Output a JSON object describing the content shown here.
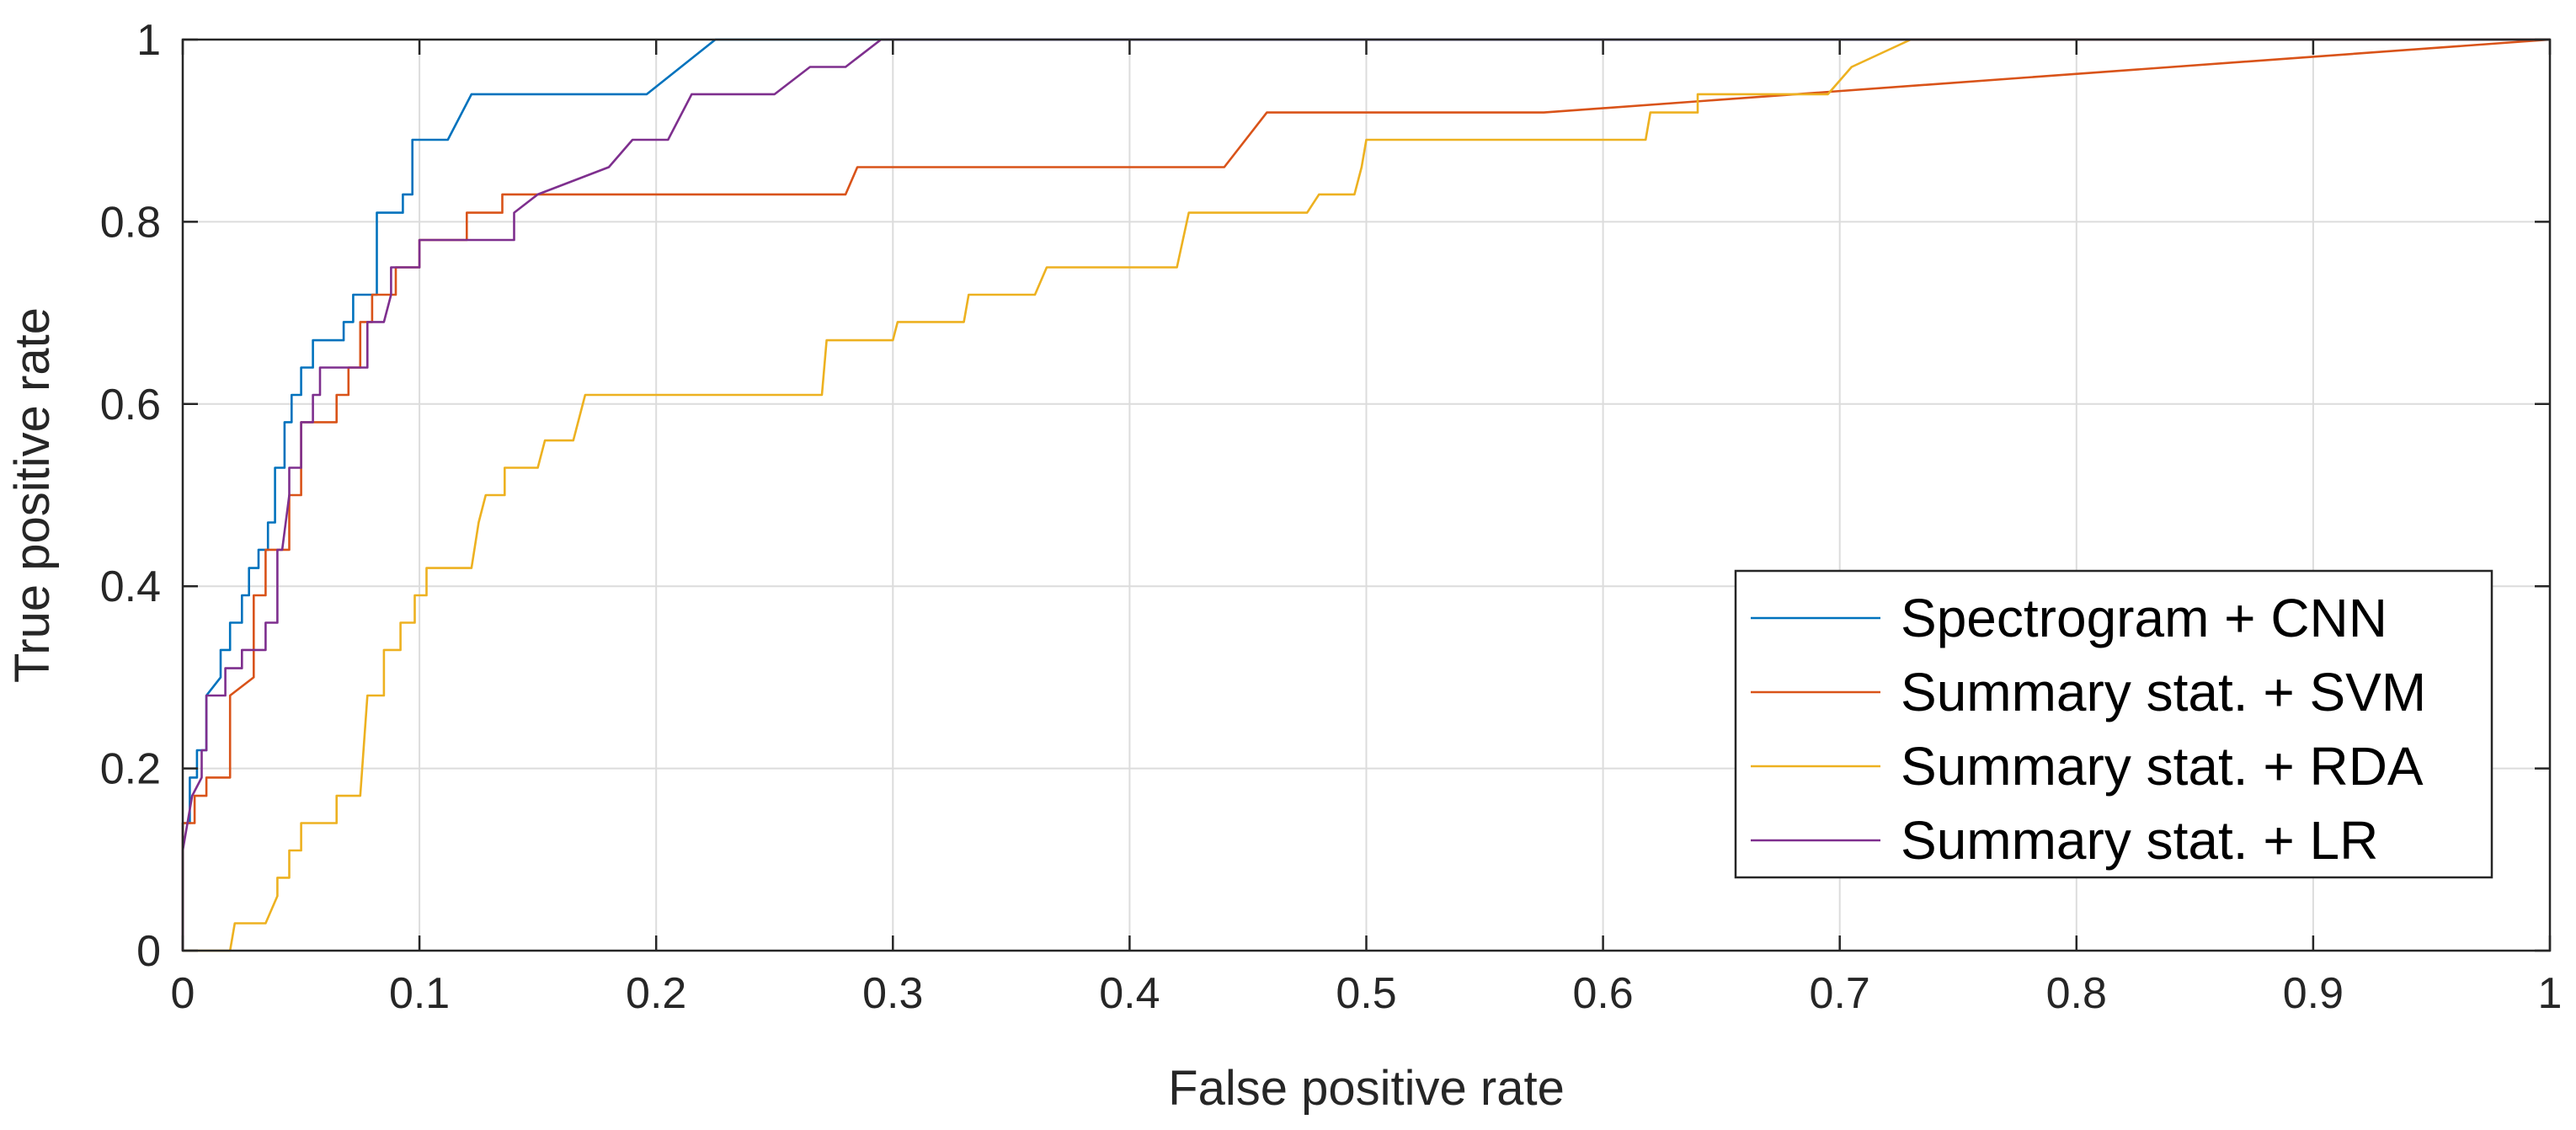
{
  "chart_data": {
    "type": "line",
    "title": "",
    "xlabel": "False positive rate",
    "ylabel": "True positive rate",
    "xlim": [
      0,
      1
    ],
    "ylim": [
      0,
      1
    ],
    "grid": true,
    "legend_position": "bottom-right",
    "xticks": [
      0,
      0.1,
      0.2,
      0.3,
      0.4,
      0.5,
      0.6,
      0.7,
      0.8,
      0.9,
      1
    ],
    "xtick_labels": [
      "0",
      "0.1",
      "0.2",
      "0.3",
      "0.4",
      "0.5",
      "0.6",
      "0.7",
      "0.8",
      "0.9",
      "1"
    ],
    "yticks": [
      0,
      0.2,
      0.4,
      0.6,
      0.8,
      1
    ],
    "ytick_labels": [
      "0",
      "0.2",
      "0.4",
      "0.6",
      "0.8",
      "1"
    ],
    "series": [
      {
        "name": "Spectrogram + CNN",
        "color": "#0072BD",
        "points": [
          [
            0,
            0
          ],
          [
            0,
            0.14
          ],
          [
            0.003,
            0.14
          ],
          [
            0.003,
            0.19
          ],
          [
            0.006,
            0.19
          ],
          [
            0.006,
            0.22
          ],
          [
            0.01,
            0.22
          ],
          [
            0.01,
            0.28
          ],
          [
            0.016,
            0.3
          ],
          [
            0.016,
            0.33
          ],
          [
            0.02,
            0.33
          ],
          [
            0.02,
            0.36
          ],
          [
            0.025,
            0.36
          ],
          [
            0.025,
            0.39
          ],
          [
            0.028,
            0.39
          ],
          [
            0.028,
            0.42
          ],
          [
            0.032,
            0.42
          ],
          [
            0.032,
            0.44
          ],
          [
            0.036,
            0.44
          ],
          [
            0.036,
            0.47
          ],
          [
            0.039,
            0.47
          ],
          [
            0.039,
            0.53
          ],
          [
            0.043,
            0.53
          ],
          [
            0.043,
            0.58
          ],
          [
            0.046,
            0.58
          ],
          [
            0.046,
            0.61
          ],
          [
            0.05,
            0.61
          ],
          [
            0.05,
            0.64
          ],
          [
            0.055,
            0.64
          ],
          [
            0.055,
            0.67
          ],
          [
            0.068,
            0.67
          ],
          [
            0.068,
            0.69
          ],
          [
            0.072,
            0.69
          ],
          [
            0.072,
            0.72
          ],
          [
            0.082,
            0.72
          ],
          [
            0.082,
            0.81
          ],
          [
            0.093,
            0.81
          ],
          [
            0.093,
            0.83
          ],
          [
            0.097,
            0.83
          ],
          [
            0.097,
            0.89
          ],
          [
            0.112,
            0.89
          ],
          [
            0.122,
            0.94
          ],
          [
            0.196,
            0.94
          ],
          [
            0.225,
            1
          ],
          [
            1,
            1
          ]
        ]
      },
      {
        "name": "Summary stat. + SVM",
        "color": "#D95319",
        "points": [
          [
            0,
            0
          ],
          [
            0,
            0.14
          ],
          [
            0.005,
            0.14
          ],
          [
            0.005,
            0.17
          ],
          [
            0.01,
            0.17
          ],
          [
            0.01,
            0.19
          ],
          [
            0.02,
            0.19
          ],
          [
            0.02,
            0.28
          ],
          [
            0.03,
            0.3
          ],
          [
            0.03,
            0.39
          ],
          [
            0.035,
            0.39
          ],
          [
            0.035,
            0.44
          ],
          [
            0.045,
            0.44
          ],
          [
            0.045,
            0.5
          ],
          [
            0.05,
            0.5
          ],
          [
            0.05,
            0.58
          ],
          [
            0.055,
            0.58
          ],
          [
            0.065,
            0.58
          ],
          [
            0.065,
            0.61
          ],
          [
            0.07,
            0.61
          ],
          [
            0.07,
            0.64
          ],
          [
            0.075,
            0.64
          ],
          [
            0.075,
            0.69
          ],
          [
            0.08,
            0.69
          ],
          [
            0.08,
            0.72
          ],
          [
            0.09,
            0.72
          ],
          [
            0.09,
            0.75
          ],
          [
            0.1,
            0.75
          ],
          [
            0.1,
            0.78
          ],
          [
            0.12,
            0.78
          ],
          [
            0.12,
            0.81
          ],
          [
            0.135,
            0.81
          ],
          [
            0.135,
            0.83
          ],
          [
            0.28,
            0.83
          ],
          [
            0.285,
            0.86
          ],
          [
            0.44,
            0.86
          ],
          [
            0.458,
            0.92
          ],
          [
            0.575,
            0.92
          ],
          [
            1,
            1
          ]
        ]
      },
      {
        "name": "Summary stat. + RDA",
        "color": "#EDB120",
        "points": [
          [
            0,
            0
          ],
          [
            0.02,
            0
          ],
          [
            0.022,
            0.03
          ],
          [
            0.035,
            0.03
          ],
          [
            0.04,
            0.06
          ],
          [
            0.04,
            0.08
          ],
          [
            0.045,
            0.08
          ],
          [
            0.045,
            0.11
          ],
          [
            0.05,
            0.11
          ],
          [
            0.05,
            0.14
          ],
          [
            0.065,
            0.14
          ],
          [
            0.065,
            0.17
          ],
          [
            0.075,
            0.17
          ],
          [
            0.078,
            0.28
          ],
          [
            0.085,
            0.28
          ],
          [
            0.085,
            0.33
          ],
          [
            0.092,
            0.33
          ],
          [
            0.092,
            0.36
          ],
          [
            0.098,
            0.36
          ],
          [
            0.098,
            0.39
          ],
          [
            0.103,
            0.39
          ],
          [
            0.103,
            0.42
          ],
          [
            0.122,
            0.42
          ],
          [
            0.125,
            0.47
          ],
          [
            0.128,
            0.5
          ],
          [
            0.136,
            0.5
          ],
          [
            0.136,
            0.53
          ],
          [
            0.15,
            0.53
          ],
          [
            0.153,
            0.56
          ],
          [
            0.165,
            0.56
          ],
          [
            0.17,
            0.61
          ],
          [
            0.27,
            0.61
          ],
          [
            0.272,
            0.67
          ],
          [
            0.3,
            0.67
          ],
          [
            0.302,
            0.69
          ],
          [
            0.33,
            0.69
          ],
          [
            0.332,
            0.72
          ],
          [
            0.36,
            0.72
          ],
          [
            0.365,
            0.75
          ],
          [
            0.42,
            0.75
          ],
          [
            0.425,
            0.81
          ],
          [
            0.475,
            0.81
          ],
          [
            0.48,
            0.83
          ],
          [
            0.495,
            0.83
          ],
          [
            0.498,
            0.86
          ],
          [
            0.5,
            0.89
          ],
          [
            0.618,
            0.89
          ],
          [
            0.62,
            0.92
          ],
          [
            0.64,
            0.92
          ],
          [
            0.64,
            0.94
          ],
          [
            0.695,
            0.94
          ],
          [
            0.705,
            0.97
          ],
          [
            0.73,
            1
          ],
          [
            1,
            1
          ]
        ]
      },
      {
        "name": "Summary stat. + LR",
        "color": "#7E2F8E",
        "points": [
          [
            0,
            0
          ],
          [
            0,
            0.11
          ],
          [
            0.004,
            0.17
          ],
          [
            0.008,
            0.19
          ],
          [
            0.008,
            0.22
          ],
          [
            0.01,
            0.22
          ],
          [
            0.01,
            0.28
          ],
          [
            0.018,
            0.28
          ],
          [
            0.018,
            0.31
          ],
          [
            0.025,
            0.31
          ],
          [
            0.025,
            0.33
          ],
          [
            0.035,
            0.33
          ],
          [
            0.035,
            0.36
          ],
          [
            0.04,
            0.36
          ],
          [
            0.04,
            0.44
          ],
          [
            0.042,
            0.44
          ],
          [
            0.045,
            0.5
          ],
          [
            0.045,
            0.53
          ],
          [
            0.05,
            0.53
          ],
          [
            0.05,
            0.58
          ],
          [
            0.055,
            0.58
          ],
          [
            0.055,
            0.61
          ],
          [
            0.058,
            0.61
          ],
          [
            0.058,
            0.64
          ],
          [
            0.078,
            0.64
          ],
          [
            0.078,
            0.69
          ],
          [
            0.085,
            0.69
          ],
          [
            0.088,
            0.72
          ],
          [
            0.088,
            0.75
          ],
          [
            0.1,
            0.75
          ],
          [
            0.1,
            0.78
          ],
          [
            0.14,
            0.78
          ],
          [
            0.14,
            0.81
          ],
          [
            0.15,
            0.83
          ],
          [
            0.18,
            0.86
          ],
          [
            0.19,
            0.89
          ],
          [
            0.205,
            0.89
          ],
          [
            0.215,
            0.94
          ],
          [
            0.25,
            0.94
          ],
          [
            0.265,
            0.97
          ],
          [
            0.28,
            0.97
          ],
          [
            0.295,
            1
          ],
          [
            1,
            1
          ]
        ]
      }
    ]
  }
}
